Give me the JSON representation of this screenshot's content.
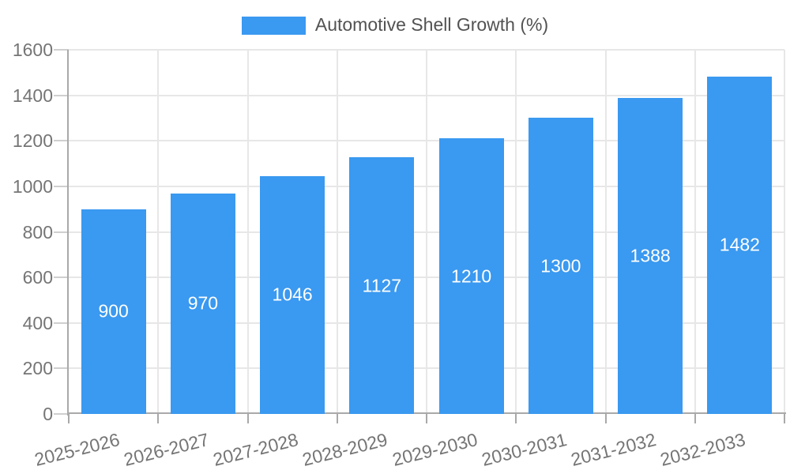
{
  "chart_data": {
    "type": "bar",
    "title": "Automotive Shell Growth (%)",
    "legend_position": "top",
    "categories": [
      "2025-2026",
      "2026-2027",
      "2027-2028",
      "2028-2029",
      "2029-2030",
      "2030-2031",
      "2031-2032",
      "2032-2033"
    ],
    "series": [
      {
        "name": "Automotive Shell Growth (%)",
        "values": [
          900,
          970,
          1046,
          1127,
          1210,
          1300,
          1388,
          1482
        ]
      }
    ],
    "value_labels_shown": true,
    "value_label_position": "inside-center",
    "xlabel": "",
    "ylabel": "",
    "ylim": [
      0,
      1600
    ],
    "yticks": [
      0,
      200,
      400,
      600,
      800,
      1000,
      1200,
      1400,
      1600
    ],
    "grid": {
      "horizontal": true,
      "vertical": true
    },
    "x_tick_label_rotation_deg": -14
  },
  "colors": {
    "bar": "#3A99F0",
    "grid": "#E7E7E7",
    "axis": "#A9A9A9",
    "y_tick_mark": "#CFCFCF",
    "tick_label": "#757575",
    "legend_text": "#525252",
    "value_label": "#FFFFFF",
    "background": "#FFFFFF"
  }
}
